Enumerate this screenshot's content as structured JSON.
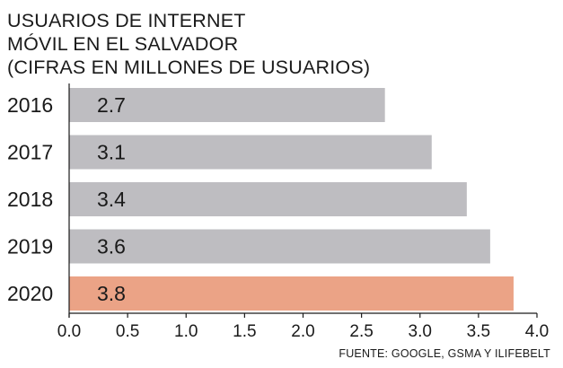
{
  "header": {
    "title_line_1": "USUARIOS DE INTERNET",
    "title_line_2": "MÓVIL EN EL SALVADOR",
    "subtitle": "(CIFRAS EN MILLONES DE USUARIOS)"
  },
  "source": "FUENTE: GOOGLE, GSMA Y ILIFEBELT",
  "colors": {
    "bar_default": "#bebdc1",
    "bar_highlight": "#eba386",
    "text": "#1a1a1a",
    "axis": "#1a1a1a"
  },
  "chart_data": {
    "type": "bar",
    "orientation": "horizontal",
    "title": "USUARIOS DE INTERNET MÓVIL EN EL SALVADOR",
    "subtitle": "(CIFRAS EN MILLONES DE USUARIOS)",
    "categories": [
      "2016",
      "2017",
      "2018",
      "2019",
      "2020"
    ],
    "values": [
      2.7,
      3.1,
      3.4,
      3.6,
      3.8
    ],
    "value_labels": [
      "2.7",
      "3.1",
      "3.4",
      "3.6",
      "3.8"
    ],
    "highlight_category": "2020",
    "xlim": [
      0,
      4
    ],
    "xticks": [
      "0.0",
      "0.5",
      "1.0",
      "1.5",
      "2.0",
      "2.5",
      "3.0",
      "3.5",
      "4.0"
    ],
    "xlabel": "",
    "ylabel": "",
    "grid": false,
    "legend": "none"
  }
}
